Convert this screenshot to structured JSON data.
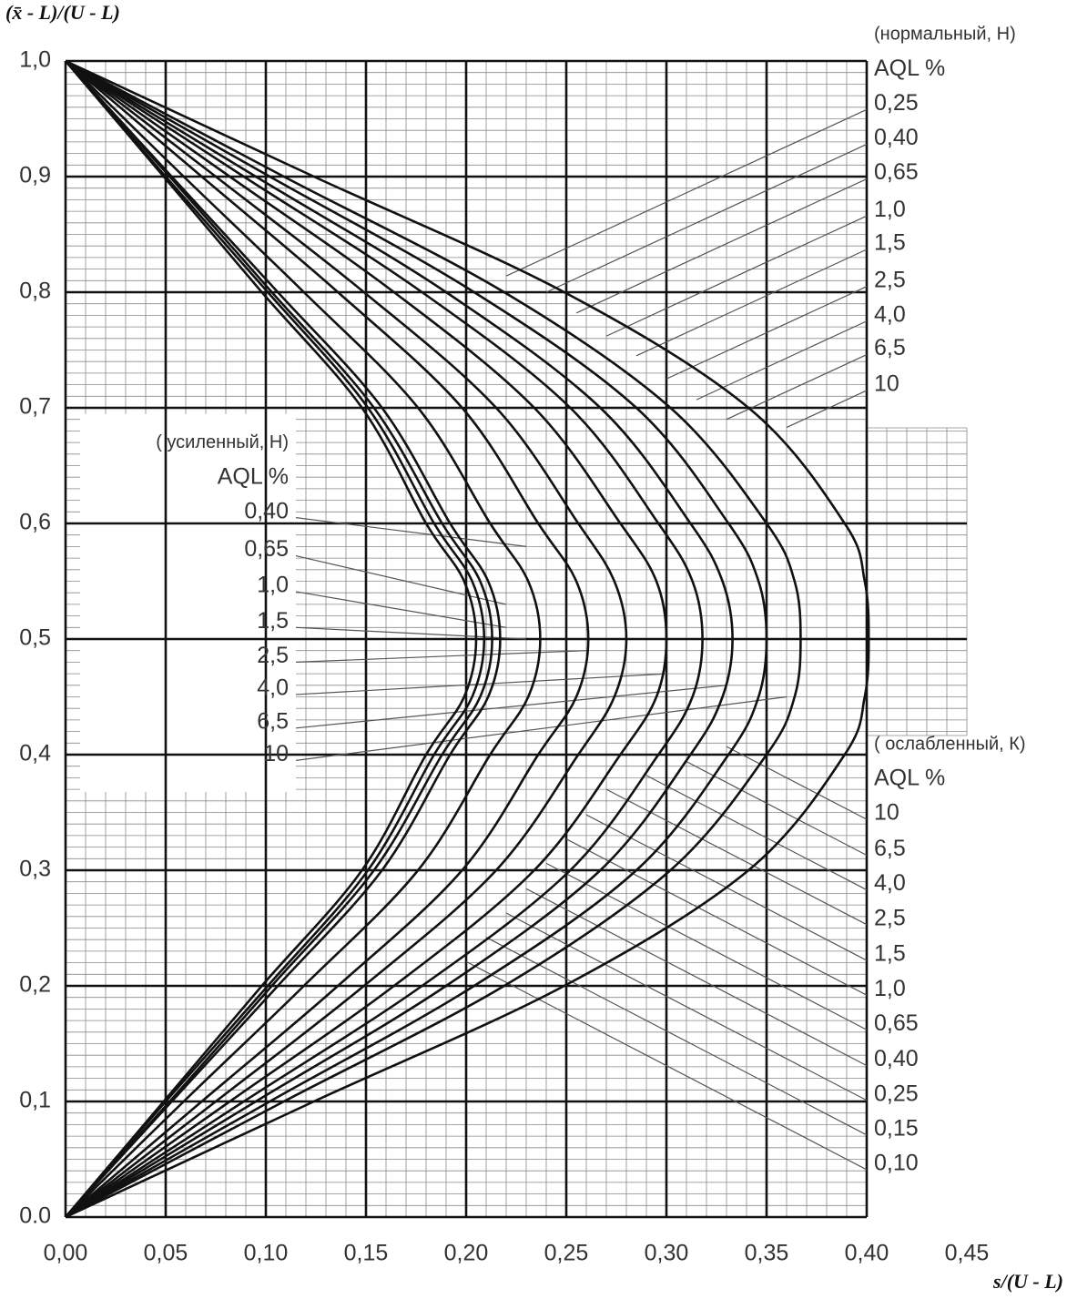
{
  "chart_data": {
    "type": "line",
    "x_label": "s/(U - L)",
    "y_label": "(x̄ - L)/(U - L)",
    "xlim": [
      0,
      0.45
    ],
    "ylim": [
      0,
      1
    ],
    "xticks": [
      {
        "value": 0,
        "label": "0,00"
      },
      {
        "value": 0.05,
        "label": "0,05"
      },
      {
        "value": 0.1,
        "label": "0,10"
      },
      {
        "value": 0.15,
        "label": "0,15"
      },
      {
        "value": 0.2,
        "label": "0,20"
      },
      {
        "value": 0.25,
        "label": "0,25"
      },
      {
        "value": 0.3,
        "label": "0,30"
      },
      {
        "value": 0.35,
        "label": "0,35"
      },
      {
        "value": 0.4,
        "label": "0,40"
      },
      {
        "value": 0.45,
        "label": "0,45"
      }
    ],
    "yticks": [
      {
        "value": 0,
        "label": "0.0"
      },
      {
        "value": 0.1,
        "label": "0,1"
      },
      {
        "value": 0.2,
        "label": "0,2"
      },
      {
        "value": 0.3,
        "label": "0,3"
      },
      {
        "value": 0.4,
        "label": "0,4"
      },
      {
        "value": 0.5,
        "label": "0,5"
      },
      {
        "value": 0.6,
        "label": "0,6"
      },
      {
        "value": 0.7,
        "label": "0,7"
      },
      {
        "value": 0.8,
        "label": "0,8"
      },
      {
        "value": 0.9,
        "label": "0,9"
      },
      {
        "value": 1,
        "label": "1,0"
      }
    ],
    "grid": true,
    "xminor": 5,
    "yminor": 10,
    "color": "#111111",
    "series": [
      {
        "x": [
          0,
          0.049,
          0.098,
          0.148,
          0.18,
          0.199,
          0.205,
          0.199,
          0.18,
          0.148,
          0.098,
          0.049,
          0
        ],
        "y": [
          0,
          0.1,
          0.2,
          0.3,
          0.4,
          0.45,
          0.5,
          0.55,
          0.6,
          0.7,
          0.8,
          0.9,
          1
        ]
      },
      {
        "x": [
          0,
          0.05,
          0.101,
          0.151,
          0.184,
          0.203,
          0.209,
          0.203,
          0.184,
          0.151,
          0.101,
          0.05,
          0
        ],
        "y": [
          0,
          0.1,
          0.2,
          0.3,
          0.4,
          0.45,
          0.5,
          0.55,
          0.6,
          0.7,
          0.8,
          0.9,
          1
        ]
      },
      {
        "x": [
          0,
          0.052,
          0.103,
          0.154,
          0.188,
          0.207,
          0.213,
          0.207,
          0.188,
          0.154,
          0.103,
          0.052,
          0
        ],
        "y": [
          0,
          0.1,
          0.2,
          0.3,
          0.4,
          0.45,
          0.5,
          0.55,
          0.6,
          0.7,
          0.8,
          0.9,
          1
        ]
      },
      {
        "x": [
          0,
          0.053,
          0.106,
          0.158,
          0.192,
          0.211,
          0.217,
          0.211,
          0.192,
          0.158,
          0.106,
          0.053,
          0
        ],
        "y": [
          0,
          0.1,
          0.2,
          0.3,
          0.4,
          0.45,
          0.5,
          0.55,
          0.6,
          0.7,
          0.8,
          0.9,
          1
        ]
      },
      {
        "x": [
          0,
          0.059,
          0.119,
          0.176,
          0.212,
          0.231,
          0.237,
          0.231,
          0.212,
          0.176,
          0.119,
          0.059,
          0
        ],
        "y": [
          0,
          0.1,
          0.2,
          0.3,
          0.4,
          0.45,
          0.5,
          0.55,
          0.6,
          0.7,
          0.8,
          0.9,
          1
        ]
      },
      {
        "x": [
          0,
          0.068,
          0.136,
          0.198,
          0.236,
          0.255,
          0.261,
          0.255,
          0.236,
          0.198,
          0.136,
          0.068,
          0
        ],
        "y": [
          0,
          0.1,
          0.2,
          0.3,
          0.4,
          0.45,
          0.5,
          0.55,
          0.6,
          0.7,
          0.8,
          0.9,
          1
        ]
      },
      {
        "x": [
          0,
          0.075,
          0.149,
          0.215,
          0.256,
          0.274,
          0.28,
          0.274,
          0.256,
          0.215,
          0.149,
          0.075,
          0
        ],
        "y": [
          0,
          0.1,
          0.2,
          0.3,
          0.4,
          0.45,
          0.5,
          0.55,
          0.6,
          0.7,
          0.8,
          0.9,
          1
        ]
      },
      {
        "x": [
          0,
          0.082,
          0.164,
          0.234,
          0.277,
          0.295,
          0.3,
          0.295,
          0.277,
          0.234,
          0.164,
          0.082,
          0
        ],
        "y": [
          0,
          0.1,
          0.2,
          0.3,
          0.4,
          0.45,
          0.5,
          0.55,
          0.6,
          0.7,
          0.8,
          0.9,
          1
        ]
      },
      {
        "x": [
          0,
          0.089,
          0.178,
          0.252,
          0.296,
          0.313,
          0.318,
          0.313,
          0.296,
          0.252,
          0.178,
          0.089,
          0
        ],
        "y": [
          0,
          0.1,
          0.2,
          0.3,
          0.4,
          0.45,
          0.5,
          0.55,
          0.6,
          0.7,
          0.8,
          0.9,
          1
        ]
      },
      {
        "x": [
          0,
          0.095,
          0.19,
          0.267,
          0.312,
          0.328,
          0.333,
          0.328,
          0.312,
          0.267,
          0.19,
          0.095,
          0
        ],
        "y": [
          0,
          0.1,
          0.2,
          0.3,
          0.4,
          0.45,
          0.5,
          0.55,
          0.6,
          0.7,
          0.8,
          0.9,
          1
        ]
      },
      {
        "x": [
          0,
          0.102,
          0.204,
          0.285,
          0.331,
          0.346,
          0.35,
          0.346,
          0.331,
          0.285,
          0.204,
          0.102,
          0
        ],
        "y": [
          0,
          0.1,
          0.2,
          0.3,
          0.4,
          0.45,
          0.5,
          0.55,
          0.6,
          0.7,
          0.8,
          0.9,
          1
        ]
      },
      {
        "x": [
          0,
          0.109,
          0.219,
          0.302,
          0.35,
          0.364,
          0.367,
          0.364,
          0.35,
          0.302,
          0.219,
          0.109,
          0
        ],
        "y": [
          0,
          0.1,
          0.2,
          0.3,
          0.4,
          0.45,
          0.5,
          0.55,
          0.6,
          0.7,
          0.8,
          0.9,
          1
        ]
      },
      {
        "x": [
          0,
          0.124,
          0.249,
          0.341,
          0.389,
          0.399,
          0.401,
          0.399,
          0.389,
          0.341,
          0.249,
          0.124,
          0
        ],
        "y": [
          0,
          0.1,
          0.2,
          0.3,
          0.4,
          0.45,
          0.5,
          0.55,
          0.6,
          0.7,
          0.8,
          0.9,
          1
        ]
      }
    ],
    "groups": [
      {
        "title": "(нормальный, Н)",
        "header": "AQL %",
        "side": "right",
        "labels": [
          "0,25",
          "0,40",
          "0,65",
          "1,0",
          "1,5",
          "2,5",
          "4,0",
          "6,5",
          "10"
        ],
        "lines": [
          {
            "x": [
              0.22,
              0.4
            ],
            "y": [
              0.814,
              0.958
            ]
          },
          {
            "x": [
              0.24,
              0.4
            ],
            "y": [
              0.8,
              0.928
            ]
          },
          {
            "x": [
              0.255,
              0.4
            ],
            "y": [
              0.782,
              0.898
            ]
          },
          {
            "x": [
              0.27,
              0.4
            ],
            "y": [
              0.762,
              0.866
            ]
          },
          {
            "x": [
              0.285,
              0.4
            ],
            "y": [
              0.745,
              0.837
            ]
          },
          {
            "x": [
              0.3,
              0.4
            ],
            "y": [
              0.725,
              0.805
            ]
          },
          {
            "x": [
              0.315,
              0.4
            ],
            "y": [
              0.707,
              0.775
            ]
          },
          {
            "x": [
              0.33,
              0.4
            ],
            "y": [
              0.69,
              0.746
            ]
          },
          {
            "x": [
              0.36,
              0.4
            ],
            "y": [
              0.683,
              0.715
            ]
          }
        ]
      },
      {
        "title": "( усиленный,  Н)",
        "header": "AQL %",
        "side": "left",
        "labels": [
          "0,40",
          "0,65",
          "1,0",
          "1,5",
          "2,5",
          "4,0",
          "6,5",
          "10"
        ],
        "lines": [
          {
            "x": [
              0.115,
              0.23
            ],
            "y": [
              0.605,
              0.58
            ]
          },
          {
            "x": [
              0.115,
              0.22
            ],
            "y": [
              0.572,
              0.53
            ]
          },
          {
            "x": [
              0.115,
              0.22
            ],
            "y": [
              0.541,
              0.51
            ]
          },
          {
            "x": [
              0.115,
              0.23
            ],
            "y": [
              0.51,
              0.5
            ]
          },
          {
            "x": [
              0.115,
              0.26
            ],
            "y": [
              0.48,
              0.49
            ]
          },
          {
            "x": [
              0.115,
              0.3
            ],
            "y": [
              0.452,
              0.47
            ]
          },
          {
            "x": [
              0.115,
              0.33
            ],
            "y": [
              0.423,
              0.46
            ]
          },
          {
            "x": [
              0.115,
              0.36
            ],
            "y": [
              0.395,
              0.45
            ]
          }
        ]
      },
      {
        "title": "( ослабленный, К)",
        "header": "AQL %",
        "side": "right",
        "labels": [
          "10",
          "6,5",
          "4,0",
          "2,5",
          "1,5",
          "1,0",
          "0,65",
          "0,40",
          "0,25",
          "0,15",
          "0,10"
        ],
        "lines": [
          {
            "x": [
              0.33,
              0.4
            ],
            "y": [
              0.407,
              0.344
            ]
          },
          {
            "x": [
              0.31,
              0.4
            ],
            "y": [
              0.394,
              0.313
            ]
          },
          {
            "x": [
              0.29,
              0.4
            ],
            "y": [
              0.382,
              0.283
            ]
          },
          {
            "x": [
              0.27,
              0.4
            ],
            "y": [
              0.37,
              0.253
            ]
          },
          {
            "x": [
              0.26,
              0.4
            ],
            "y": [
              0.348,
              0.222
            ]
          },
          {
            "x": [
              0.25,
              0.4
            ],
            "y": [
              0.327,
              0.192
            ]
          },
          {
            "x": [
              0.24,
              0.4
            ],
            "y": [
              0.306,
              0.162
            ]
          },
          {
            "x": [
              0.23,
              0.4
            ],
            "y": [
              0.284,
              0.131
            ]
          },
          {
            "x": [
              0.22,
              0.4
            ],
            "y": [
              0.263,
              0.101
            ]
          },
          {
            "x": [
              0.21,
              0.4
            ],
            "y": [
              0.242,
              0.071
            ]
          },
          {
            "x": [
              0.2,
              0.4
            ],
            "y": [
              0.221,
              0.041
            ]
          }
        ]
      }
    ]
  }
}
